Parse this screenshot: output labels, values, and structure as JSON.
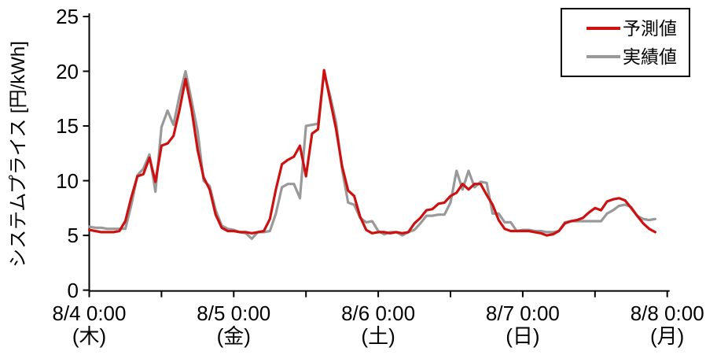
{
  "chart_data": {
    "type": "line",
    "title": "",
    "ylabel": "システムプライス [円/kWh]",
    "xlabel": "",
    "ylim": [
      0,
      25
    ],
    "yticks": [
      0,
      5,
      10,
      15,
      20,
      25
    ],
    "grid": false,
    "legend_position": "top-right",
    "x_unit": "hours-from-8/4-0:00",
    "x_range_hours": [
      0,
      96
    ],
    "minor_tick_hours": [
      0,
      12,
      24,
      36,
      48,
      60,
      72,
      84,
      96
    ],
    "x_major_ticks": [
      {
        "hour": 0,
        "label": "8/4 0:00",
        "day": "(木)"
      },
      {
        "hour": 24,
        "label": "8/5 0:00",
        "day": "(金)"
      },
      {
        "hour": 48,
        "label": "8/6 0:00",
        "day": "(土)"
      },
      {
        "hour": 72,
        "label": "8/7 0:00",
        "day": "(日)"
      },
      {
        "hour": 96,
        "label": "8/8 0:00",
        "day": "(月)"
      }
    ],
    "series": [
      {
        "key": "forecast",
        "name": "予測値",
        "color": "#cc1111",
        "start_hour": 0,
        "step_hours": 1,
        "values": [
          5.5,
          5.4,
          5.3,
          5.3,
          5.3,
          5.4,
          6.3,
          8.5,
          10.4,
          10.6,
          12.1,
          9.9,
          13.2,
          13.4,
          14.1,
          16.5,
          19.3,
          16.5,
          12.8,
          10.3,
          9.2,
          6.9,
          5.7,
          5.4,
          5.4,
          5.3,
          5.3,
          5.2,
          5.3,
          5.4,
          6.5,
          9.2,
          11.5,
          11.9,
          12.2,
          13.2,
          10.4,
          14.3,
          14.7,
          20.1,
          17.4,
          14.7,
          11.3,
          9.1,
          8.6,
          6.7,
          5.5,
          5.2,
          5.3,
          5.3,
          5.2,
          5.3,
          5.2,
          5.3,
          6.1,
          6.6,
          7.3,
          7.4,
          7.9,
          8.0,
          8.6,
          8.9,
          9.7,
          9.2,
          9.7,
          9.7,
          8.7,
          7.8,
          6.4,
          5.6,
          5.4,
          5.4,
          5.4,
          5.4,
          5.3,
          5.2,
          5.0,
          5.1,
          5.4,
          6.1,
          6.3,
          6.4,
          6.6,
          7.1,
          7.5,
          7.3,
          8.1,
          8.3,
          8.4,
          8.2,
          7.5,
          6.8,
          6.1,
          5.6,
          5.3
        ]
      },
      {
        "key": "actual",
        "name": "実績値",
        "color": "#999999",
        "start_hour": 0,
        "step_hours": 1,
        "values": [
          5.8,
          5.7,
          5.7,
          5.6,
          5.6,
          5.6,
          5.6,
          7.8,
          10.5,
          11.1,
          12.4,
          9.0,
          14.9,
          16.4,
          15.1,
          17.8,
          20.0,
          17.3,
          14.5,
          10.0,
          9.5,
          7.3,
          5.9,
          5.6,
          5.5,
          5.3,
          5.2,
          4.7,
          5.3,
          5.3,
          5.4,
          7.0,
          9.4,
          9.7,
          9.7,
          8.4,
          15.0,
          15.1,
          15.2,
          19.8,
          17.8,
          15.3,
          11.0,
          8.0,
          7.8,
          6.6,
          6.2,
          6.3,
          5.4,
          5.1,
          5.3,
          5.3,
          5.0,
          5.3,
          5.5,
          6.1,
          6.8,
          6.8,
          6.9,
          6.9,
          8.0,
          10.9,
          9.2,
          10.9,
          9.4,
          9.9,
          9.8,
          7.0,
          7.0,
          6.2,
          6.2,
          5.4,
          5.5,
          5.5,
          5.4,
          5.4,
          5.3,
          5.3,
          5.4,
          6.2,
          6.3,
          6.3,
          6.3,
          6.3,
          6.3,
          6.3,
          7.0,
          7.3,
          7.7,
          7.8,
          7.6,
          6.8,
          6.5,
          6.4,
          6.5
        ]
      }
    ],
    "axis_color": "#000000"
  }
}
